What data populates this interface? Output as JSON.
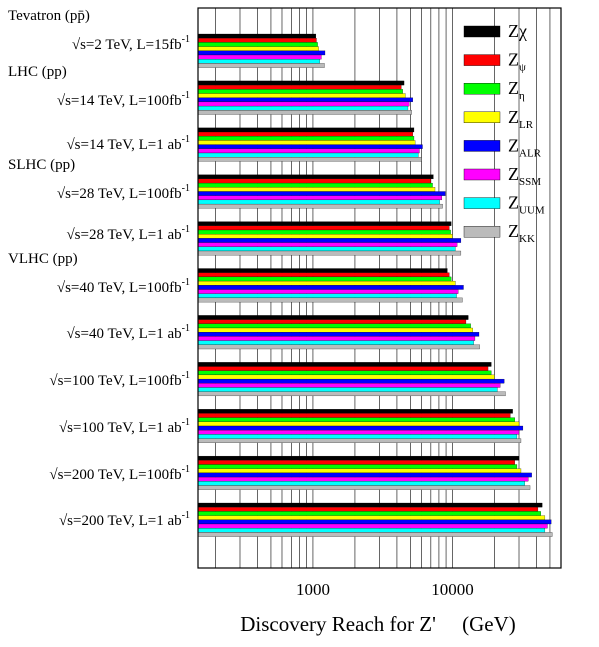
{
  "chart_data": {
    "type": "bar",
    "orientation": "horizontal",
    "xscale": "log",
    "xlim": [
      150,
      60000
    ],
    "xlabel": "Discovery Reach for Z'     (GeV)",
    "xticks": [
      1000,
      10000
    ],
    "xtick_labels": [
      "1000",
      "10000"
    ],
    "grid": true,
    "legend_position": "top-right",
    "groups": [
      {
        "header": "Tevatron (pp̄)",
        "label": "√s=2 TeV, L=15fb",
        "sup": "-1"
      },
      {
        "header": "LHC (pp)",
        "label": "√s=14 TeV, L=100fb",
        "sup": "-1"
      },
      {
        "header": "",
        "label": "√s=14 TeV, L=1 ab",
        "sup": "-1"
      },
      {
        "header": "SLHC (pp)",
        "label": "√s=28 TeV, L=100fb",
        "sup": "-1"
      },
      {
        "header": "",
        "label": "√s=28 TeV, L=1 ab",
        "sup": "-1"
      },
      {
        "header": "VLHC (pp)",
        "label": "√s=40 TeV, L=100fb",
        "sup": "-1"
      },
      {
        "header": "",
        "label": "√s=40 TeV, L=1 ab",
        "sup": "-1"
      },
      {
        "header": "",
        "label": "√s=100 TeV, L=100fb",
        "sup": "-1"
      },
      {
        "header": "",
        "label": "√s=100 TeV, L=1 ab",
        "sup": "-1"
      },
      {
        "header": "",
        "label": "√s=200 TeV, L=100fb",
        "sup": "-1"
      },
      {
        "header": "",
        "label": "√s=200 TeV, L=1 ab",
        "sup": "-1"
      }
    ],
    "series": [
      {
        "name": "Z",
        "sub": "χ",
        "sub_style": "large",
        "color": "#000000",
        "values": [
          1050,
          4500,
          5300,
          7300,
          9800,
          9200,
          13000,
          19000,
          27000,
          30000,
          44000
        ]
      },
      {
        "name": "Z",
        "sub": "ψ",
        "color": "#ff0000",
        "values": [
          1060,
          4300,
          5200,
          7000,
          9500,
          9500,
          12500,
          18000,
          26000,
          28000,
          41000
        ]
      },
      {
        "name": "Z",
        "sub": "η",
        "color": "#00ff00",
        "values": [
          1080,
          4400,
          5300,
          7200,
          9700,
          9800,
          13500,
          19000,
          28000,
          29000,
          43000
        ]
      },
      {
        "name": "Z",
        "sub": "LR",
        "color": "#ffff00",
        "values": [
          1100,
          4600,
          5400,
          7500,
          10000,
          10500,
          14000,
          20000,
          30000,
          31000,
          46000
        ]
      },
      {
        "name": "Z",
        "sub": "ALR",
        "color": "#0000ff",
        "values": [
          1220,
          5200,
          6100,
          8900,
          11500,
          12000,
          15500,
          23500,
          32000,
          37000,
          51000
        ]
      },
      {
        "name": "Z",
        "sub": "SSM",
        "color": "#ff00ff",
        "values": [
          1150,
          4900,
          5800,
          8400,
          10800,
          11000,
          14500,
          22000,
          30000,
          35000,
          48000
        ]
      },
      {
        "name": "Z",
        "sub": "UUM",
        "color": "#00ffff",
        "values": [
          1120,
          4800,
          5700,
          8100,
          10500,
          10700,
          14200,
          21000,
          29000,
          33000,
          46000
        ]
      },
      {
        "name": "Z",
        "sub": "KK",
        "color": "#bbbbbb",
        "values": [
          1210,
          5100,
          6000,
          8500,
          11500,
          11800,
          15700,
          24000,
          31000,
          36000,
          52000
        ]
      }
    ]
  }
}
